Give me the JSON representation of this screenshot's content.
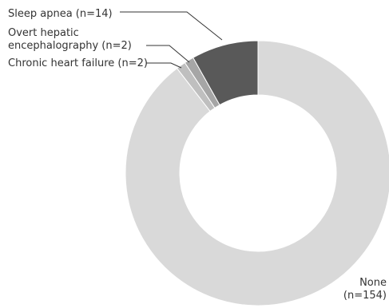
{
  "chart_data": {
    "type": "pie",
    "donut": true,
    "slices": [
      {
        "label_lines": [
          "None",
          "(n=154)"
        ],
        "value": 154,
        "color": "#d9d9d9"
      },
      {
        "label_lines": [
          "Chronic heart failure (n=2)"
        ],
        "value": 2,
        "color": "#bfbfbf"
      },
      {
        "label_lines": [
          "Overt hepatic",
          "encephalography (n=2)"
        ],
        "value": 2,
        "color": "#a6a6a6"
      },
      {
        "label_lines": [
          "Sleep apnea (n=14)"
        ],
        "value": 14,
        "color": "#595959"
      }
    ],
    "start_angle_deg": 0,
    "direction": "clockwise_from_none_ending_with_sleep_apnea"
  }
}
